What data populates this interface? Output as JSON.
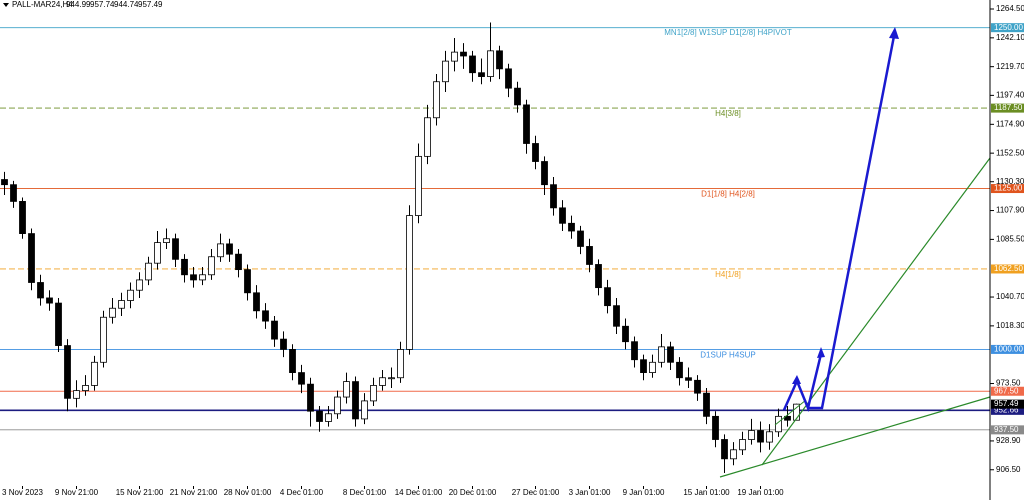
{
  "chart_data": {
    "type": "candlestick",
    "title": "PALL-MAR24,H4",
    "candles": [
      [
        1132,
        1138,
        1120,
        1128
      ],
      [
        1128,
        1131,
        1110,
        1115
      ],
      [
        1115,
        1118,
        1086,
        1090
      ],
      [
        1090,
        1094,
        1046,
        1052
      ],
      [
        1052,
        1058,
        1034,
        1040
      ],
      [
        1040,
        1046,
        1030,
        1036
      ],
      [
        1036,
        1040,
        998,
        1003
      ],
      [
        1003,
        1008,
        952,
        962
      ],
      [
        962,
        976,
        955,
        968
      ],
      [
        968,
        980,
        964,
        972
      ],
      [
        972,
        995,
        968,
        990
      ],
      [
        990,
        1030,
        986,
        1025
      ],
      [
        1025,
        1040,
        1020,
        1032
      ],
      [
        1032,
        1044,
        1026,
        1038
      ],
      [
        1038,
        1052,
        1032,
        1046
      ],
      [
        1046,
        1060,
        1040,
        1054
      ],
      [
        1054,
        1072,
        1050,
        1067
      ],
      [
        1067,
        1092,
        1062,
        1083
      ],
      [
        1083,
        1094,
        1078,
        1086
      ],
      [
        1086,
        1090,
        1064,
        1070
      ],
      [
        1070,
        1074,
        1052,
        1058
      ],
      [
        1058,
        1064,
        1048,
        1054
      ],
      [
        1054,
        1064,
        1050,
        1058
      ],
      [
        1058,
        1078,
        1054,
        1072
      ],
      [
        1072,
        1090,
        1068,
        1082
      ],
      [
        1082,
        1086,
        1068,
        1074
      ],
      [
        1074,
        1078,
        1056,
        1062
      ],
      [
        1062,
        1066,
        1038,
        1044
      ],
      [
        1044,
        1050,
        1024,
        1030
      ],
      [
        1030,
        1036,
        1016,
        1022
      ],
      [
        1022,
        1026,
        1002,
        1008
      ],
      [
        1008,
        1014,
        994,
        1000
      ],
      [
        1000,
        1004,
        976,
        982
      ],
      [
        982,
        988,
        966,
        973
      ],
      [
        973,
        978,
        940,
        952
      ],
      [
        952,
        956,
        936,
        944
      ],
      [
        944,
        956,
        940,
        950
      ],
      [
        950,
        968,
        946,
        963
      ],
      [
        963,
        982,
        958,
        975
      ],
      [
        975,
        979,
        940,
        946
      ],
      [
        946,
        966,
        942,
        960
      ],
      [
        960,
        978,
        956,
        972
      ],
      [
        972,
        984,
        968,
        978
      ],
      [
        978,
        986,
        970,
        978
      ],
      [
        978,
        1006,
        974,
        1000
      ],
      [
        1000,
        1112,
        996,
        1104
      ],
      [
        1104,
        1160,
        1098,
        1150
      ],
      [
        1150,
        1190,
        1144,
        1180
      ],
      [
        1180,
        1214,
        1174,
        1208
      ],
      [
        1208,
        1232,
        1200,
        1224
      ],
      [
        1224,
        1242,
        1216,
        1231
      ],
      [
        1231,
        1238,
        1218,
        1228
      ],
      [
        1228,
        1232,
        1208,
        1215
      ],
      [
        1215,
        1226,
        1206,
        1212
      ],
      [
        1212,
        1254,
        1208,
        1232
      ],
      [
        1232,
        1236,
        1210,
        1218
      ],
      [
        1218,
        1222,
        1196,
        1203
      ],
      [
        1203,
        1208,
        1184,
        1190
      ],
      [
        1190,
        1194,
        1152,
        1160
      ],
      [
        1160,
        1166,
        1140,
        1146
      ],
      [
        1146,
        1150,
        1120,
        1128
      ],
      [
        1128,
        1134,
        1104,
        1110
      ],
      [
        1110,
        1116,
        1092,
        1098
      ],
      [
        1098,
        1104,
        1086,
        1092
      ],
      [
        1092,
        1096,
        1074,
        1080
      ],
      [
        1080,
        1086,
        1060,
        1066
      ],
      [
        1066,
        1070,
        1042,
        1048
      ],
      [
        1048,
        1054,
        1028,
        1034
      ],
      [
        1034,
        1040,
        1012,
        1018
      ],
      [
        1018,
        1024,
        1000,
        1006
      ],
      [
        1006,
        1010,
        986,
        992
      ],
      [
        992,
        996,
        976,
        982
      ],
      [
        982,
        996,
        978,
        990
      ],
      [
        990,
        1012,
        986,
        1002
      ],
      [
        1002,
        1006,
        984,
        990
      ],
      [
        990,
        994,
        972,
        978
      ],
      [
        978,
        986,
        970,
        976
      ],
      [
        976,
        980,
        960,
        966
      ],
      [
        966,
        970,
        942,
        948
      ],
      [
        948,
        952,
        924,
        930
      ],
      [
        930,
        934,
        904,
        915
      ],
      [
        915,
        928,
        910,
        922
      ],
      [
        922,
        936,
        918,
        930
      ],
      [
        930,
        946,
        926,
        937
      ],
      [
        937,
        944,
        920,
        928
      ],
      [
        928,
        942,
        922,
        936
      ],
      [
        936,
        954,
        932,
        948
      ],
      [
        948,
        956,
        940,
        945
      ],
      [
        944.99,
        957.74,
        944.74,
        957.49
      ]
    ],
    "up_color": "#ffffff",
    "down_color": "#000000",
    "xlim": [
      -0.5,
      109.5
    ],
    "ylim": [
      883,
      1271.5
    ],
    "xticks": [
      {
        "value": 2,
        "label": "3 Nov 2023"
      },
      {
        "value": 8,
        "label": "9 Nov 21:00"
      },
      {
        "value": 15,
        "label": "15 Nov 21:00"
      },
      {
        "value": 21,
        "label": "21 Nov 21:00"
      },
      {
        "value": 27,
        "label": "28 Nov 01:00"
      },
      {
        "value": 33,
        "label": "4 Dec 01:00"
      },
      {
        "value": 40,
        "label": "8 Dec 01:00"
      },
      {
        "value": 46,
        "label": "14 Dec 01:00"
      },
      {
        "value": 52,
        "label": "20 Dec 01:00"
      },
      {
        "value": 59,
        "label": "27 Dec 01:00"
      },
      {
        "value": 65,
        "label": "3 Jan 01:00"
      },
      {
        "value": 71,
        "label": "9 Jan 01:00"
      },
      {
        "value": 78,
        "label": "15 Jan 01:00"
      },
      {
        "value": 84,
        "label": "19 Jan 01:00"
      }
    ],
    "yticks": [
      {
        "value": 1264.5,
        "label": "1264.50"
      },
      {
        "value": 1242.1,
        "label": "1242.10"
      },
      {
        "value": 1219.7,
        "label": "1219.70"
      },
      {
        "value": 1197.4,
        "label": "1197.40"
      },
      {
        "value": 1174.9,
        "label": "1174.90"
      },
      {
        "value": 1152.5,
        "label": "1152.50"
      },
      {
        "value": 1130.3,
        "label": "1130.30"
      },
      {
        "value": 1107.9,
        "label": "1107.90"
      },
      {
        "value": 1085.5,
        "label": "1085.50"
      },
      {
        "value": 1040.7,
        "label": "1040.70"
      },
      {
        "value": 1018.3,
        "label": "1018.30"
      },
      {
        "value": 973.5,
        "label": "973.50"
      },
      {
        "value": 928.9,
        "label": "928.90"
      },
      {
        "value": 906.5,
        "label": "906.50"
      }
    ],
    "levels": [
      {
        "value": 1250,
        "label": "1250.00",
        "color": "#3fa3c8",
        "text": "MN1[2/8] W1SUP D1[2/8] H4PIVOT",
        "dashed": false
      },
      {
        "value": 1187.5,
        "label": "1187.50",
        "color": "#6b8e23",
        "text": "H4[3/8]",
        "dashed": true
      },
      {
        "value": 1125,
        "label": "1125.00",
        "color": "#e0541d",
        "text": "D1[1/8] H4[2/8]",
        "dashed": false
      },
      {
        "value": 1062.5,
        "label": "1062.50",
        "color": "#f0a020",
        "text": "H4[1/8]",
        "dashed": true
      },
      {
        "value": 1000,
        "label": "1000.00",
        "color": "#3d8fe0",
        "text": "D1SUP H4SUP",
        "dashed": false
      },
      {
        "value": 967.5,
        "label": "967.50",
        "color": "#f06a4a",
        "dashed": false
      },
      {
        "value": 952.66,
        "label": "952.66",
        "color": "#1c1c80",
        "dashed": false
      },
      {
        "value": 937.5,
        "label": "937.50",
        "color": "#8a8a8a",
        "dashed": false
      }
    ],
    "last_color": "#000000"
  }
}
